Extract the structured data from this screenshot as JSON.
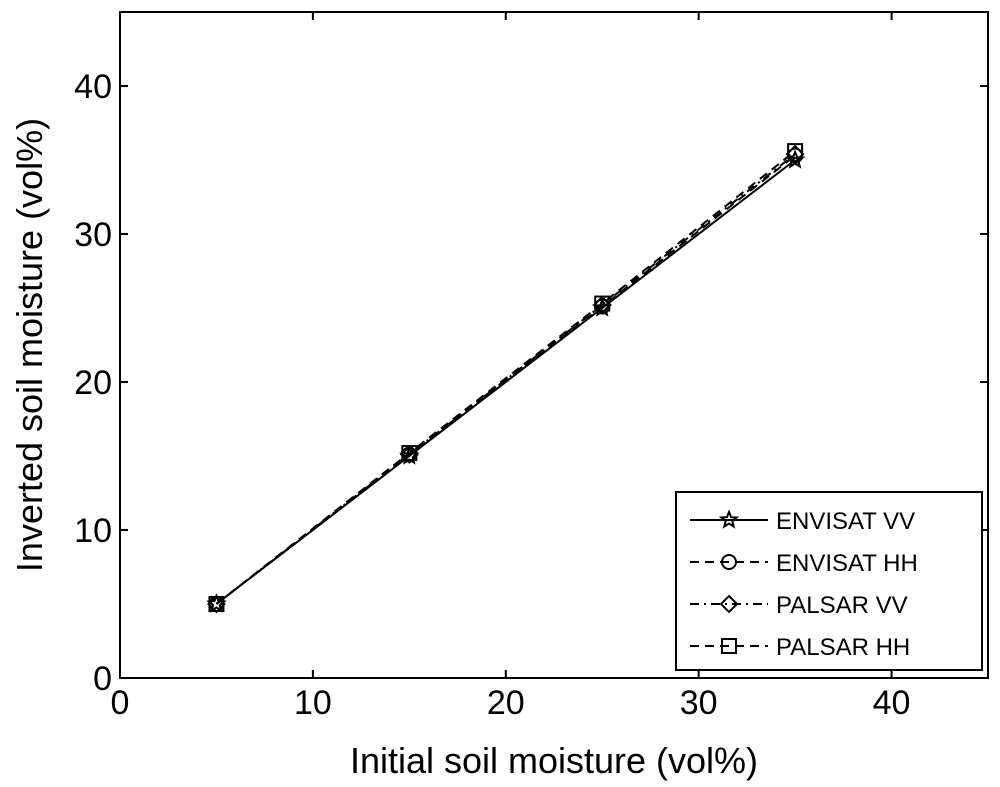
{
  "chart_data": {
    "type": "line",
    "title": "",
    "xlabel": "Initial soil moisture (vol%)",
    "ylabel": "Inverted soil moisture (vol%)",
    "xlim": [
      0,
      45
    ],
    "ylim": [
      0,
      45
    ],
    "xticks": [
      "0",
      "10",
      "20",
      "30",
      "40"
    ],
    "yticks": [
      "0",
      "10",
      "20",
      "30",
      "40"
    ],
    "grid": false,
    "legend_position": "bottom-right",
    "series": [
      {
        "name": "ENVISAT VV",
        "marker": "star",
        "linestyle": "solid",
        "x": [
          5,
          15,
          25,
          35
        ],
        "y": [
          5.0,
          15.0,
          25.0,
          35.0
        ]
      },
      {
        "name": "ENVISAT HH",
        "marker": "circle",
        "linestyle": "dashed",
        "x": [
          5,
          15,
          25,
          35
        ],
        "y": [
          5.0,
          15.1,
          25.1,
          35.3
        ]
      },
      {
        "name": "PALSAR VV",
        "marker": "diamond",
        "linestyle": "dashdot",
        "x": [
          5,
          15,
          25,
          35
        ],
        "y": [
          5.0,
          15.1,
          25.2,
          35.4
        ]
      },
      {
        "name": "PALSAR HH",
        "marker": "square",
        "linestyle": "dashed",
        "x": [
          5,
          15,
          25,
          35
        ],
        "y": [
          5.0,
          15.2,
          25.3,
          35.6
        ]
      }
    ]
  }
}
